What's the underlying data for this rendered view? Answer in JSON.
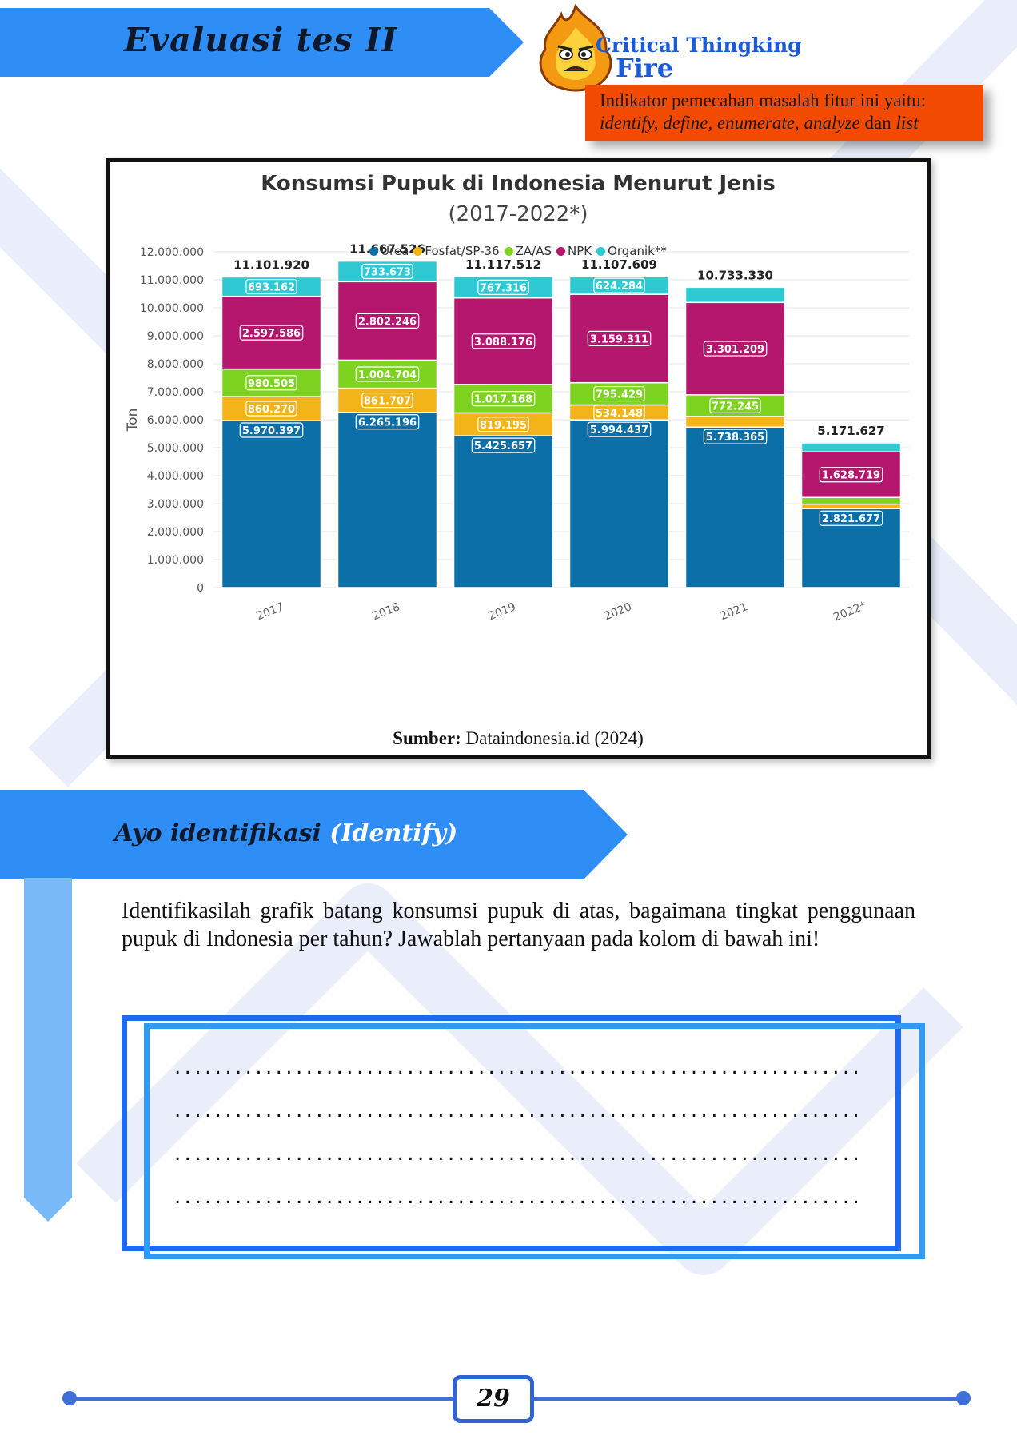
{
  "header": {
    "title": "Evaluasi tes II",
    "brand_line1": "Critical Thingking",
    "brand_line2": "Fire",
    "indicator_line1": "Indikator pemecahan masalah fitur ini yaitu:",
    "indicator_italic": "identify, define, enumerate, analyze",
    "indicator_mid": " dan ",
    "indicator_end": "list"
  },
  "chart_data": {
    "type": "bar",
    "stacked": true,
    "title": "Konsumsi Pupuk di Indonesia Menurut Jenis",
    "subtitle": "(2017-2022*)",
    "ylabel": "Ton",
    "xlabel": "",
    "ylim": [
      0,
      12000000
    ],
    "yticks": [
      "0",
      "1.000.000",
      "2.000.000",
      "3.000.000",
      "4.000.000",
      "5.000.000",
      "6.000.000",
      "7.000.000",
      "8.000.000",
      "9.000.000",
      "10.000.000",
      "11.000.000",
      "12.000.000"
    ],
    "categories": [
      "2017",
      "2018",
      "2019",
      "2020",
      "2021",
      "2022*"
    ],
    "totals": [
      11101920,
      11667526,
      11117512,
      11107609,
      10733330,
      5171627
    ],
    "total_labels": [
      "11.101.920",
      "11.667.526",
      "11.117.512",
      "11.107.609",
      "10.733.330",
      "5.171.627"
    ],
    "legend_position": "top-center",
    "grid": true,
    "series": [
      {
        "name": "Urea",
        "color": "#0d6fa8",
        "values": [
          5970397,
          6265196,
          5425657,
          5994437,
          5738365,
          2821677
        ],
        "labels": [
          "5.970.397",
          "6.265.196",
          "5.425.657",
          "5.994.437",
          "5.738.365",
          "2.821.677"
        ]
      },
      {
        "name": "Fosfat/SP-36",
        "color": "#f2b418",
        "values": [
          860270,
          861707,
          819195,
          534148,
          380000,
          160000
        ],
        "labels": [
          "860.270",
          "861.707",
          "819.195",
          "534.148",
          "",
          ""
        ]
      },
      {
        "name": "ZA/AS",
        "color": "#7ed321",
        "values": [
          980505,
          1004704,
          1017168,
          795429,
          772245,
          240000
        ],
        "labels": [
          "980.505",
          "1.004.704",
          "1.017.168",
          "795.429",
          "772.245",
          ""
        ]
      },
      {
        "name": "NPK",
        "color": "#b5166e",
        "values": [
          2597586,
          2802246,
          3088176,
          3159311,
          3301209,
          1628719
        ],
        "labels": [
          "2.597.586",
          "2.802.246",
          "3.088.176",
          "3.159.311",
          "3.301.209",
          "1.628.719"
        ]
      },
      {
        "name": "Organik**",
        "color": "#2ec9d3",
        "values": [
          693162,
          733673,
          767316,
          624284,
          541511,
          321231
        ],
        "labels": [
          "693.162",
          "733.673",
          "767.316",
          "624.284",
          "",
          ""
        ]
      }
    ],
    "source_label": "Sumber:",
    "source_text": " Dataindonesia.id (2024)"
  },
  "section": {
    "title": "Ayo identifikasi ",
    "title_en": "(Identify)",
    "question": "Identifikasilah grafik batang konsumsi pupuk di atas, bagaimana tingkat penggunaan pupuk di Indonesia per tahun? Jawablah pertanyaan pada kolom di bawah ini!"
  },
  "answer_lines": [
    "...........................................................................",
    "...........................................................................",
    "...........................................................................",
    "..........................................................................."
  ],
  "footer": {
    "page_number": "29"
  },
  "colors": {
    "banner": "#2f8ef5",
    "accent": "#1f68f0",
    "indicator_bg": "#f24a00"
  }
}
